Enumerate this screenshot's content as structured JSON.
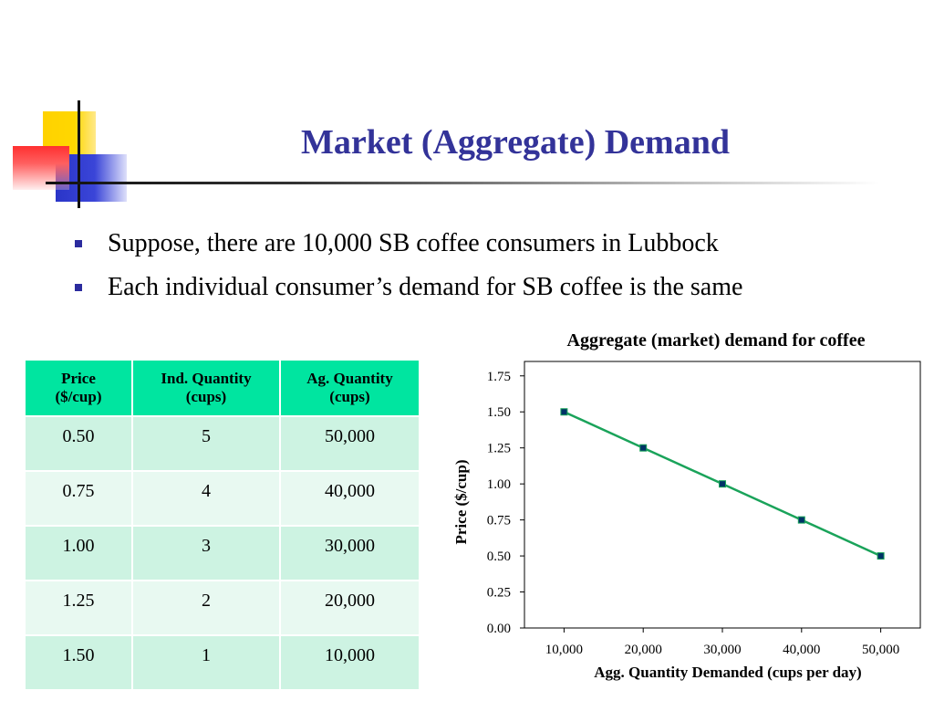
{
  "slide": {
    "title": "Market (Aggregate) Demand",
    "bullets": [
      "Suppose, there are 10,000 SB coffee consumers in Lubbock",
      "Each individual consumer’s demand for SB coffee is the same"
    ]
  },
  "table": {
    "headers": [
      [
        "Price",
        "($/cup)"
      ],
      [
        "Ind. Quantity",
        "(cups)"
      ],
      [
        "Ag. Quantity",
        "(cups)"
      ]
    ],
    "rows": [
      [
        "0.50",
        "5",
        "50,000"
      ],
      [
        "0.75",
        "4",
        "40,000"
      ],
      [
        "1.00",
        "3",
        "30,000"
      ],
      [
        "1.25",
        "2",
        "20,000"
      ],
      [
        "1.50",
        "1",
        "10,000"
      ]
    ]
  },
  "colors": {
    "title": "#333399",
    "table_header": "#00e5a0",
    "table_row_dark": "#cdf3e2",
    "table_row_light": "#e8f9f1",
    "line": "#1aa35a",
    "marker": "#003366"
  },
  "chart_data": {
    "type": "line",
    "title": "Aggregate (market) demand for coffee",
    "xlabel": "Agg. Quantity Demanded (cups per day)",
    "ylabel": "Price ($/cup)",
    "x": [
      10000,
      20000,
      30000,
      40000,
      50000
    ],
    "x_tick_labels": [
      "10,000",
      "20,000",
      "30,000",
      "40,000",
      "50,000"
    ],
    "y_ticks": [
      0.0,
      0.25,
      0.5,
      0.75,
      1.0,
      1.25,
      1.5,
      1.75
    ],
    "y_tick_labels": [
      "0.00",
      "0.25",
      "0.50",
      "0.75",
      "1.00",
      "1.25",
      "1.50",
      "1.75"
    ],
    "ylim": [
      0,
      1.85
    ],
    "xlim": [
      5000,
      55000
    ],
    "series": [
      {
        "values": [
          1.5,
          1.25,
          1.0,
          0.75,
          0.5
        ]
      }
    ],
    "grid": false,
    "legend": "none"
  }
}
